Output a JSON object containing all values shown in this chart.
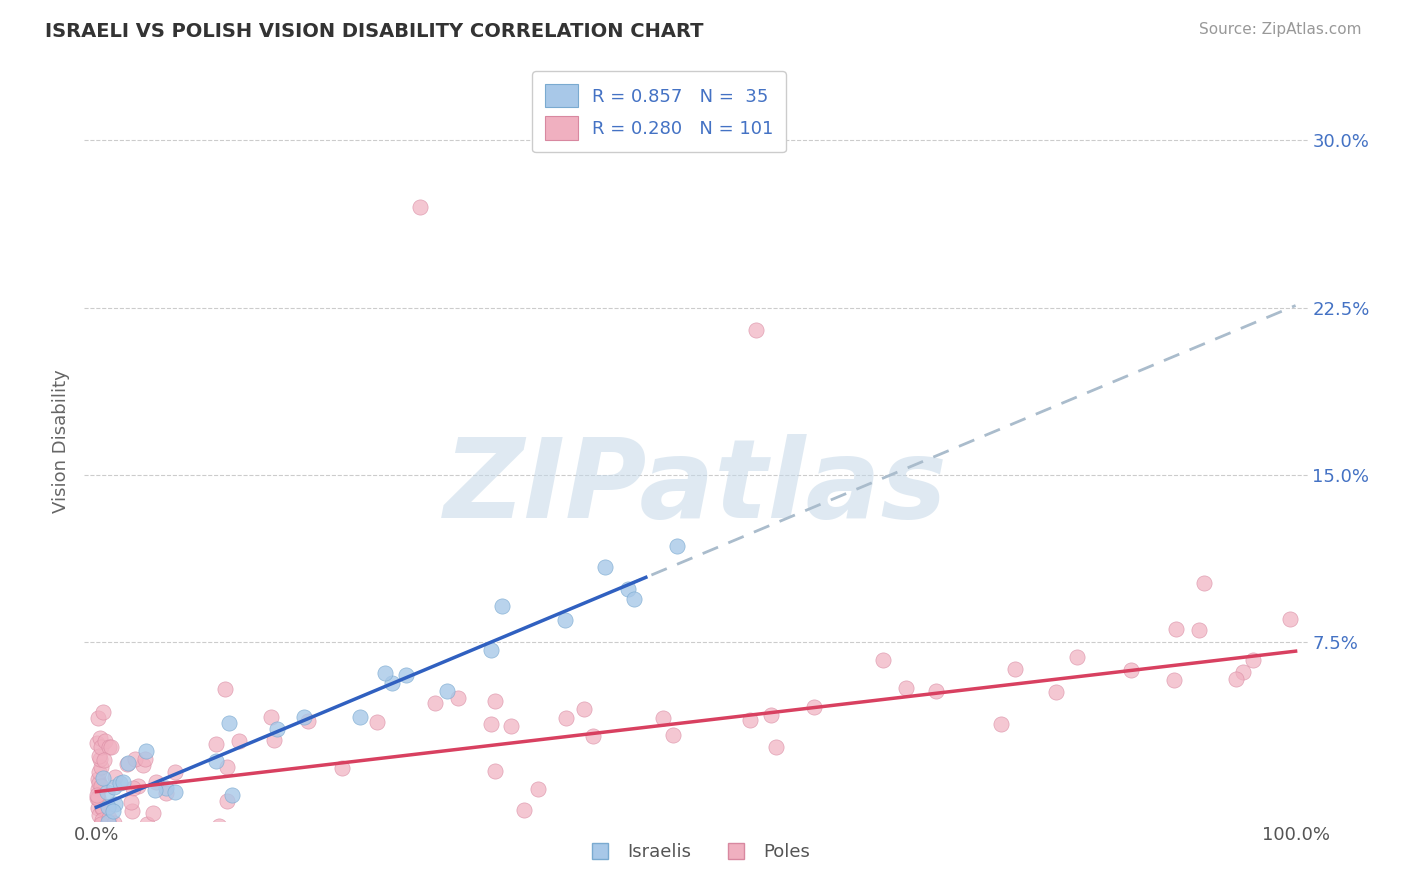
{
  "title": "ISRAELI VS POLISH VISION DISABILITY CORRELATION CHART",
  "source_text": "Source: ZipAtlas.com",
  "ylabel": "Vision Disability",
  "x_tick_labels": [
    "0.0%",
    "100.0%"
  ],
  "y_tick_labels": [
    "7.5%",
    "15.0%",
    "22.5%",
    "30.0%"
  ],
  "y_tick_values": [
    0.075,
    0.15,
    0.225,
    0.3
  ],
  "xlim": [
    -0.01,
    1.01
  ],
  "ylim": [
    -0.005,
    0.335
  ],
  "israelis": {
    "scatter_color": "#a8c8e8",
    "scatter_edge": "#7aaad0",
    "regression_color": "#3060c0",
    "dashed_color": "#aabccc",
    "R": 0.857,
    "N": 35
  },
  "poles": {
    "scatter_color": "#f0b0c0",
    "scatter_edge": "#d888a0",
    "regression_color": "#d84060",
    "R": 0.28,
    "N": 101
  },
  "legend_label_blue": "R = 0.857   N =  35",
  "legend_label_pink": "R = 0.280   N = 101",
  "legend_color_blue": "#4472c4",
  "watermark": "ZIPatlas",
  "background_color": "#ffffff",
  "grid_color": "#cccccc",
  "title_color": "#333333",
  "source_color": "#999999",
  "ylabel_color": "#666666",
  "tick_color": "#4472c4"
}
